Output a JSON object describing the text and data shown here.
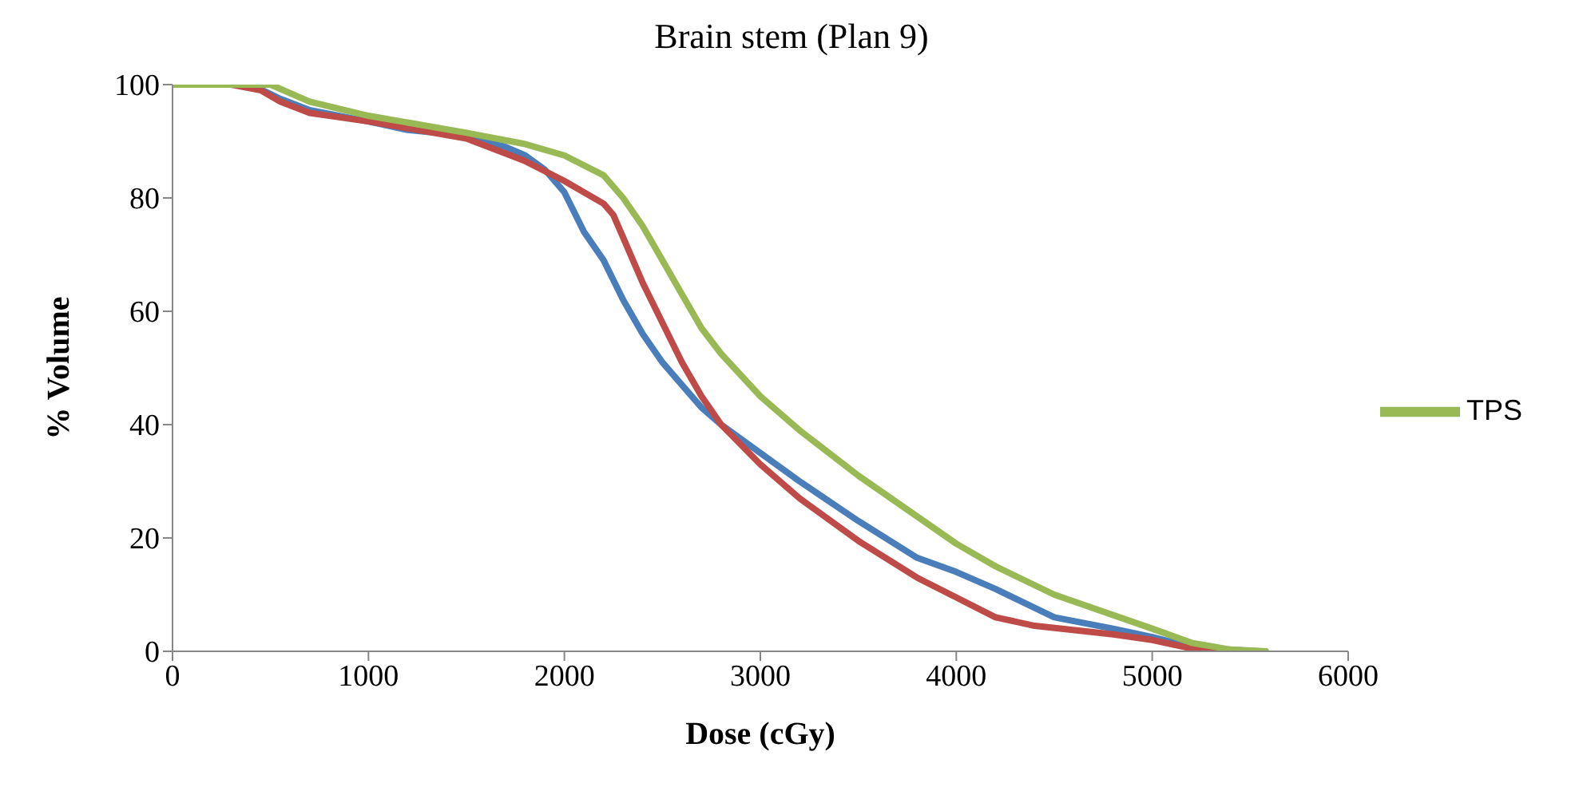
{
  "chart_data": {
    "type": "line",
    "title": "Brain stem (Plan 9)",
    "xlabel": "Dose (cGy)",
    "ylabel": "% Volume",
    "xlim": [
      0,
      6000
    ],
    "xticks": [
      0,
      1000,
      2000,
      3000,
      4000,
      5000,
      6000
    ],
    "ylim": [
      0,
      100
    ],
    "yticks": [
      0,
      20,
      40,
      60,
      80,
      100
    ],
    "grid": false,
    "legend": "right",
    "marker": "none",
    "line_style": "solid",
    "series": [
      {
        "color": "#4a7ebb",
        "x": [
          0,
          400,
          550,
          700,
          1000,
          1200,
          1500,
          1700,
          1800,
          1900,
          2000,
          2100,
          2200,
          2300,
          2400,
          2500,
          2600,
          2700,
          2800,
          3000,
          3200,
          3500,
          3800,
          4000,
          4200,
          4500,
          4800,
          5000,
          5200,
          5400,
          5550
        ],
        "values": [
          100,
          100,
          97.5,
          95.5,
          93.5,
          92,
          91,
          89,
          87.5,
          85,
          81,
          74,
          69,
          62,
          56,
          51,
          47,
          43,
          40,
          35,
          30,
          23,
          16.5,
          14,
          11,
          6,
          4,
          2.5,
          0.8,
          0.3,
          0
        ]
      },
      {
        "color": "#be4b48",
        "x": [
          0,
          300,
          450,
          550,
          700,
          1000,
          1500,
          1800,
          2000,
          2200,
          2250,
          2300,
          2400,
          2500,
          2600,
          2700,
          2800,
          3000,
          3200,
          3500,
          3800,
          4000,
          4200,
          4400,
          4800,
          5000,
          5200,
          5400,
          5550
        ],
        "values": [
          100,
          100,
          99,
          97,
          95,
          93.5,
          90.5,
          86.5,
          83,
          79,
          77,
          73,
          65,
          58,
          51,
          45,
          40,
          33,
          27,
          19.5,
          13,
          9.5,
          6,
          4.5,
          3,
          2,
          0.5,
          0,
          0
        ]
      },
      {
        "name": "TPS",
        "color": "#98b954",
        "x": [
          0,
          500,
          700,
          1000,
          1500,
          1800,
          2000,
          2200,
          2300,
          2400,
          2500,
          2600,
          2700,
          2800,
          3000,
          3200,
          3500,
          4000,
          4200,
          4500,
          5000,
          5200,
          5400,
          5580
        ],
        "values": [
          100,
          100,
          97,
          94.5,
          91.5,
          89.5,
          87.5,
          84,
          80,
          75,
          69,
          63,
          57,
          52.5,
          45,
          39,
          31,
          19,
          15,
          10,
          4,
          1.5,
          0.3,
          0
        ]
      }
    ]
  }
}
